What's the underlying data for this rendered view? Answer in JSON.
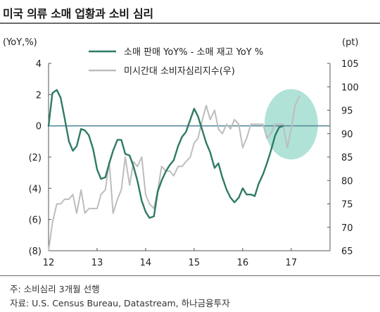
{
  "title": "미국 의류 소매 업황과 소비 심리",
  "notes": {
    "line1": "주: 소비심리 3개월 선행",
    "line2": "자료: U.S. Census Bureau, Datastream, 하나금융투자"
  },
  "chart_data": {
    "type": "line",
    "left_axis": {
      "unit": "(YoY,%)",
      "ylim": [
        -8,
        4
      ],
      "tick_labels": [
        "4",
        "2",
        "0",
        "(2)",
        "(4)",
        "(6)",
        "(8)"
      ],
      "tick_values": [
        4,
        2,
        0,
        -2,
        -4,
        -6,
        -8
      ]
    },
    "right_axis": {
      "unit": "(pt)",
      "ylim": [
        65,
        105
      ],
      "tick_labels": [
        "105",
        "100",
        "95",
        "90",
        "85",
        "80",
        "75",
        "70",
        "65"
      ],
      "tick_values": [
        105,
        100,
        95,
        90,
        85,
        80,
        75,
        70,
        65
      ]
    },
    "x_axis": {
      "xlim": [
        2012.0,
        2017.8
      ],
      "tick_labels": [
        "12",
        "13",
        "14",
        "15",
        "16",
        "17"
      ],
      "tick_values": [
        2012.0,
        2013.0,
        2014.0,
        2015.0,
        2016.0,
        2017.0
      ]
    },
    "series": [
      {
        "name": "소매 판매 YoY% - 소매 재고 YoY %",
        "axis": "left",
        "color": "#2e7a66",
        "points": [
          [
            2012.0,
            0.0
          ],
          [
            2012.08,
            2.1
          ],
          [
            2012.17,
            2.3
          ],
          [
            2012.25,
            1.8
          ],
          [
            2012.33,
            0.5
          ],
          [
            2012.42,
            -1.0
          ],
          [
            2012.5,
            -1.6
          ],
          [
            2012.58,
            -1.3
          ],
          [
            2012.67,
            -0.2
          ],
          [
            2012.75,
            -0.3
          ],
          [
            2012.83,
            -0.6
          ],
          [
            2012.92,
            -1.5
          ],
          [
            2013.0,
            -2.8
          ],
          [
            2013.08,
            -3.4
          ],
          [
            2013.17,
            -3.3
          ],
          [
            2013.25,
            -2.4
          ],
          [
            2013.33,
            -1.6
          ],
          [
            2013.42,
            -0.9
          ],
          [
            2013.5,
            -0.9
          ],
          [
            2013.58,
            -1.8
          ],
          [
            2013.67,
            -1.9
          ],
          [
            2013.75,
            -2.6
          ],
          [
            2013.83,
            -3.5
          ],
          [
            2013.92,
            -4.8
          ],
          [
            2014.0,
            -5.5
          ],
          [
            2014.08,
            -5.9
          ],
          [
            2014.17,
            -5.8
          ],
          [
            2014.25,
            -4.2
          ],
          [
            2014.33,
            -3.5
          ],
          [
            2014.42,
            -2.9
          ],
          [
            2014.5,
            -2.5
          ],
          [
            2014.58,
            -2.2
          ],
          [
            2014.67,
            -1.3
          ],
          [
            2014.75,
            -0.7
          ],
          [
            2014.83,
            -0.4
          ],
          [
            2014.92,
            0.4
          ],
          [
            2015.0,
            1.1
          ],
          [
            2015.08,
            0.6
          ],
          [
            2015.17,
            -0.3
          ],
          [
            2015.25,
            -1.1
          ],
          [
            2015.33,
            -1.7
          ],
          [
            2015.42,
            -2.7
          ],
          [
            2015.5,
            -2.4
          ],
          [
            2015.58,
            -3.3
          ],
          [
            2015.67,
            -4.1
          ],
          [
            2015.75,
            -4.6
          ],
          [
            2015.83,
            -4.9
          ],
          [
            2015.92,
            -4.6
          ],
          [
            2016.0,
            -4.0
          ],
          [
            2016.08,
            -4.4
          ],
          [
            2016.17,
            -4.4
          ],
          [
            2016.25,
            -4.5
          ],
          [
            2016.33,
            -3.7
          ],
          [
            2016.42,
            -3.1
          ],
          [
            2016.5,
            -2.4
          ],
          [
            2016.58,
            -1.6
          ],
          [
            2016.67,
            -0.6
          ],
          [
            2016.75,
            -0.1
          ],
          [
            2016.83,
            0.0
          ]
        ]
      },
      {
        "name": "미시간대 소비자심리지수(우)",
        "axis": "right",
        "color": "#bdbdbd",
        "points": [
          [
            2012.0,
            65
          ],
          [
            2012.08,
            71
          ],
          [
            2012.17,
            75
          ],
          [
            2012.25,
            75
          ],
          [
            2012.33,
            76
          ],
          [
            2012.42,
            76
          ],
          [
            2012.5,
            77
          ],
          [
            2012.58,
            73
          ],
          [
            2012.67,
            78
          ],
          [
            2012.75,
            73
          ],
          [
            2012.83,
            74
          ],
          [
            2012.92,
            74
          ],
          [
            2013.0,
            74
          ],
          [
            2013.08,
            77
          ],
          [
            2013.17,
            78
          ],
          [
            2013.25,
            84
          ],
          [
            2013.33,
            73
          ],
          [
            2013.42,
            76
          ],
          [
            2013.5,
            78
          ],
          [
            2013.58,
            85
          ],
          [
            2013.67,
            79
          ],
          [
            2013.75,
            84
          ],
          [
            2013.83,
            83
          ],
          [
            2013.92,
            85
          ],
          [
            2014.0,
            77
          ],
          [
            2014.08,
            75
          ],
          [
            2014.17,
            74
          ],
          [
            2014.25,
            78
          ],
          [
            2014.33,
            83
          ],
          [
            2014.42,
            82
          ],
          [
            2014.5,
            82
          ],
          [
            2014.58,
            81
          ],
          [
            2014.67,
            83
          ],
          [
            2014.75,
            83
          ],
          [
            2014.83,
            84
          ],
          [
            2014.92,
            85
          ],
          [
            2015.0,
            88
          ],
          [
            2015.08,
            89
          ],
          [
            2015.17,
            93
          ],
          [
            2015.25,
            96
          ],
          [
            2015.33,
            93
          ],
          [
            2015.42,
            95
          ],
          [
            2015.5,
            91
          ],
          [
            2015.58,
            90
          ],
          [
            2015.67,
            92
          ],
          [
            2015.75,
            91
          ],
          [
            2015.83,
            93
          ],
          [
            2015.92,
            92
          ],
          [
            2016.0,
            87
          ],
          [
            2016.08,
            89
          ],
          [
            2016.17,
            92
          ],
          [
            2016.25,
            92
          ],
          [
            2016.33,
            92
          ],
          [
            2016.42,
            92
          ],
          [
            2016.5,
            89
          ],
          [
            2016.58,
            90
          ],
          [
            2016.67,
            92
          ],
          [
            2016.75,
            92
          ],
          [
            2016.83,
            92
          ],
          [
            2016.92,
            87
          ],
          [
            2017.0,
            91
          ],
          [
            2017.08,
            96
          ],
          [
            2017.17,
            98
          ]
        ]
      }
    ],
    "zero_line": {
      "value": 0,
      "axis": "left",
      "color": "#5a8a9a"
    },
    "highlight": {
      "shape": "ellipse",
      "color": "#8fd6c7",
      "center": [
        2017.0,
        92
      ],
      "axis": "right"
    },
    "legend": {
      "placement": "top-center"
    },
    "grid": false
  }
}
